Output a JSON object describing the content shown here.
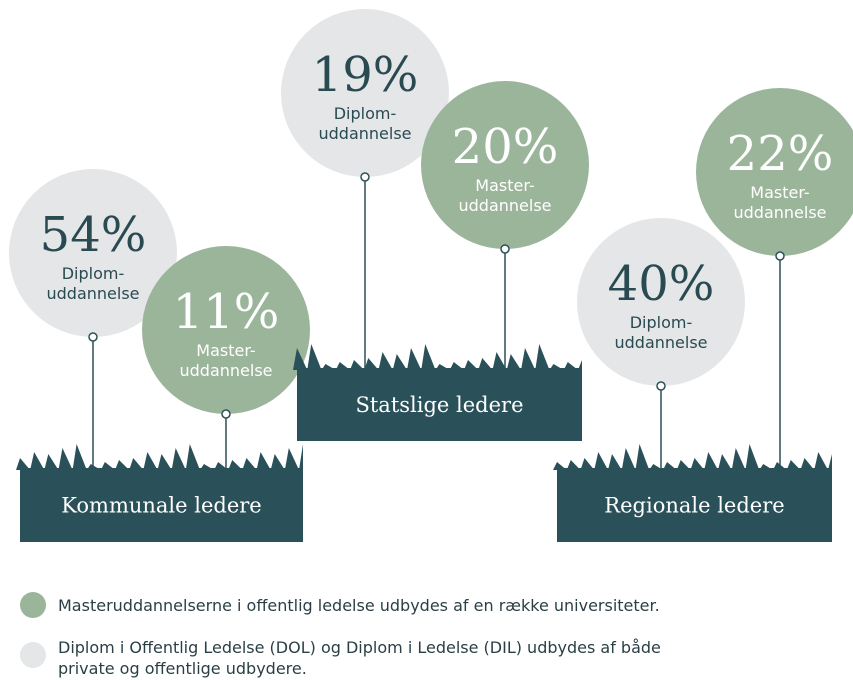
{
  "groups": [
    {
      "label": "Kommunale ledere",
      "items": [
        {
          "value_label": "54%",
          "label": [
            "Diplom-",
            "uddannelse"
          ],
          "kind": "diplom"
        },
        {
          "value_label": "11%",
          "label": [
            "Master-",
            "uddannelse"
          ],
          "kind": "master"
        }
      ]
    },
    {
      "label": "Statslige ledere",
      "items": [
        {
          "value_label": "19%",
          "label": [
            "Diplom-",
            "uddannelse"
          ],
          "kind": "diplom"
        },
        {
          "value_label": "20%",
          "label": [
            "Master-",
            "uddannelse"
          ],
          "kind": "master"
        }
      ]
    },
    {
      "label": "Regionale ledere",
      "items": [
        {
          "value_label": "40%",
          "label": [
            "Diplom-",
            "uddannelse"
          ],
          "kind": "diplom"
        },
        {
          "value_label": "22%",
          "label": [
            "Master-",
            "uddannelse"
          ],
          "kind": "master"
        }
      ]
    }
  ],
  "legend": [
    {
      "kind": "master",
      "text": [
        "Masteruddannelserne i offentlig ledelse udbydes af en række universiteter."
      ]
    },
    {
      "kind": "diplom",
      "text": [
        "Diplom i Offentlig Ledelse (DOL) og Diplom i Ledelse (DIL) udbydes af både",
        "private og offentlige udbydere."
      ]
    }
  ]
}
